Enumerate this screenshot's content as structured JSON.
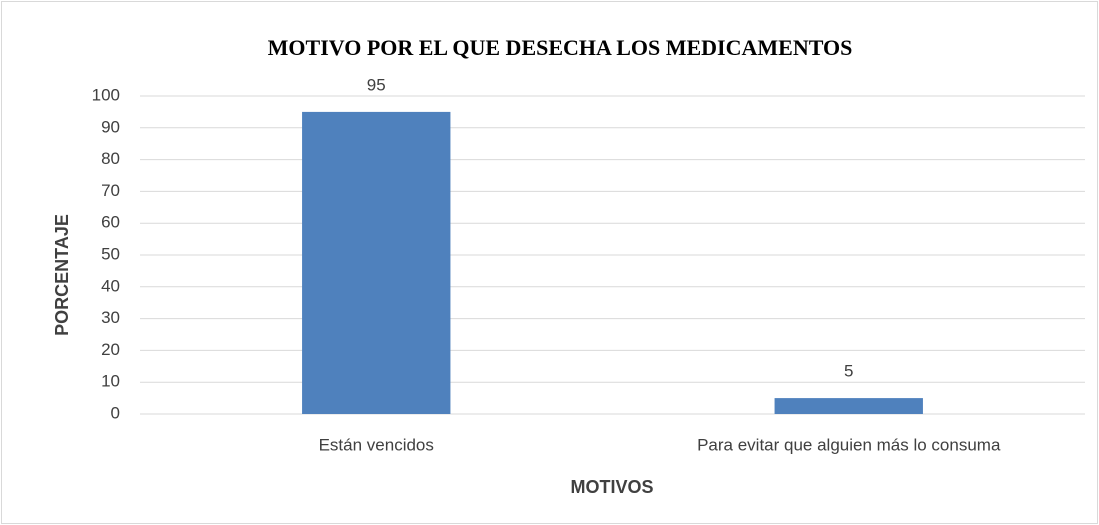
{
  "chart_data": {
    "type": "bar",
    "title": "MOTIVO POR EL QUE DESECHA LOS MEDICAMENTOS",
    "x_label": "MOTIVOS",
    "y_label": "PORCENTAJE",
    "categories": [
      "Están vencidos",
      "Para evitar que alguien más lo consuma"
    ],
    "values": [
      95,
      5
    ],
    "color": "#4f81bd",
    "ylim": [
      0,
      100
    ],
    "yticks": [
      0,
      10,
      20,
      30,
      40,
      50,
      60,
      70,
      80,
      90,
      100
    ],
    "grid": true
  }
}
